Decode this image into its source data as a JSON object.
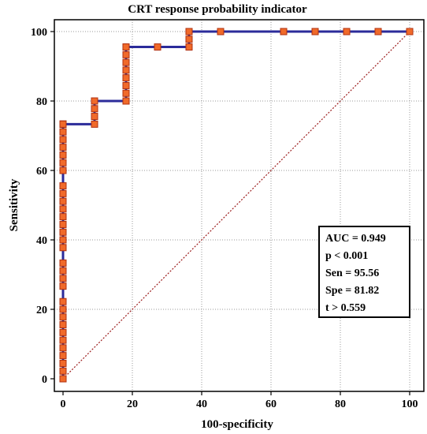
{
  "chart_data": {
    "type": "line",
    "title": "CRT response probability indicator",
    "xlabel": "100-specificity",
    "ylabel": "Sensitivity",
    "xlim": [
      0,
      100
    ],
    "ylim": [
      0,
      100
    ],
    "x_ticks": [
      0,
      20,
      40,
      60,
      80,
      100
    ],
    "y_ticks": [
      0,
      20,
      40,
      60,
      80,
      100
    ],
    "grid": true,
    "colors": {
      "roc_line": "#2b2b9a",
      "marker_fill": "#f06a2a",
      "marker_stroke": "#b03010",
      "diagonal": "#9b1b1b"
    },
    "series": [
      {
        "style": "step-with-markers",
        "x": [
          0,
          0,
          0,
          0,
          0,
          0,
          0,
          0,
          0,
          0,
          0,
          0,
          0,
          0,
          0,
          0,
          0,
          0,
          0,
          0,
          0,
          0,
          0,
          0,
          0,
          0,
          0,
          0,
          0,
          0,
          0,
          0,
          0,
          0,
          0,
          9.09,
          9.09,
          9.09,
          9.09,
          18.18,
          18.18,
          18.18,
          18.18,
          18.18,
          18.18,
          18.18,
          18.18,
          18.18,
          27.27,
          36.36,
          36.36,
          36.36,
          45.45,
          63.64,
          72.73,
          81.82,
          90.91,
          100
        ],
        "y": [
          0,
          2.22,
          4.44,
          6.67,
          8.89,
          11.11,
          13.33,
          15.56,
          17.78,
          20,
          22.22,
          26.67,
          28.89,
          31.11,
          33.33,
          37.78,
          40,
          42.22,
          44.44,
          46.67,
          48.89,
          51.11,
          53.33,
          55.56,
          60,
          62.22,
          64.44,
          66.67,
          68.89,
          71.11,
          73.33,
          73.33,
          73.33,
          73.33,
          73.33,
          73.33,
          75.56,
          77.78,
          80,
          80,
          82.22,
          84.44,
          86.67,
          88.89,
          91.11,
          93.33,
          95.56,
          95.56,
          95.56,
          95.56,
          97.78,
          100,
          100,
          100,
          100,
          100,
          100,
          100
        ]
      },
      {
        "style": "reference-diagonal",
        "x": [
          0,
          100
        ],
        "y": [
          0,
          100
        ]
      }
    ],
    "annotation": {
      "lines": [
        "AUC = 0.949",
        "p < 0.001",
        "Sen = 95.56",
        "Spe = 81.82",
        "t > 0.559"
      ]
    }
  }
}
